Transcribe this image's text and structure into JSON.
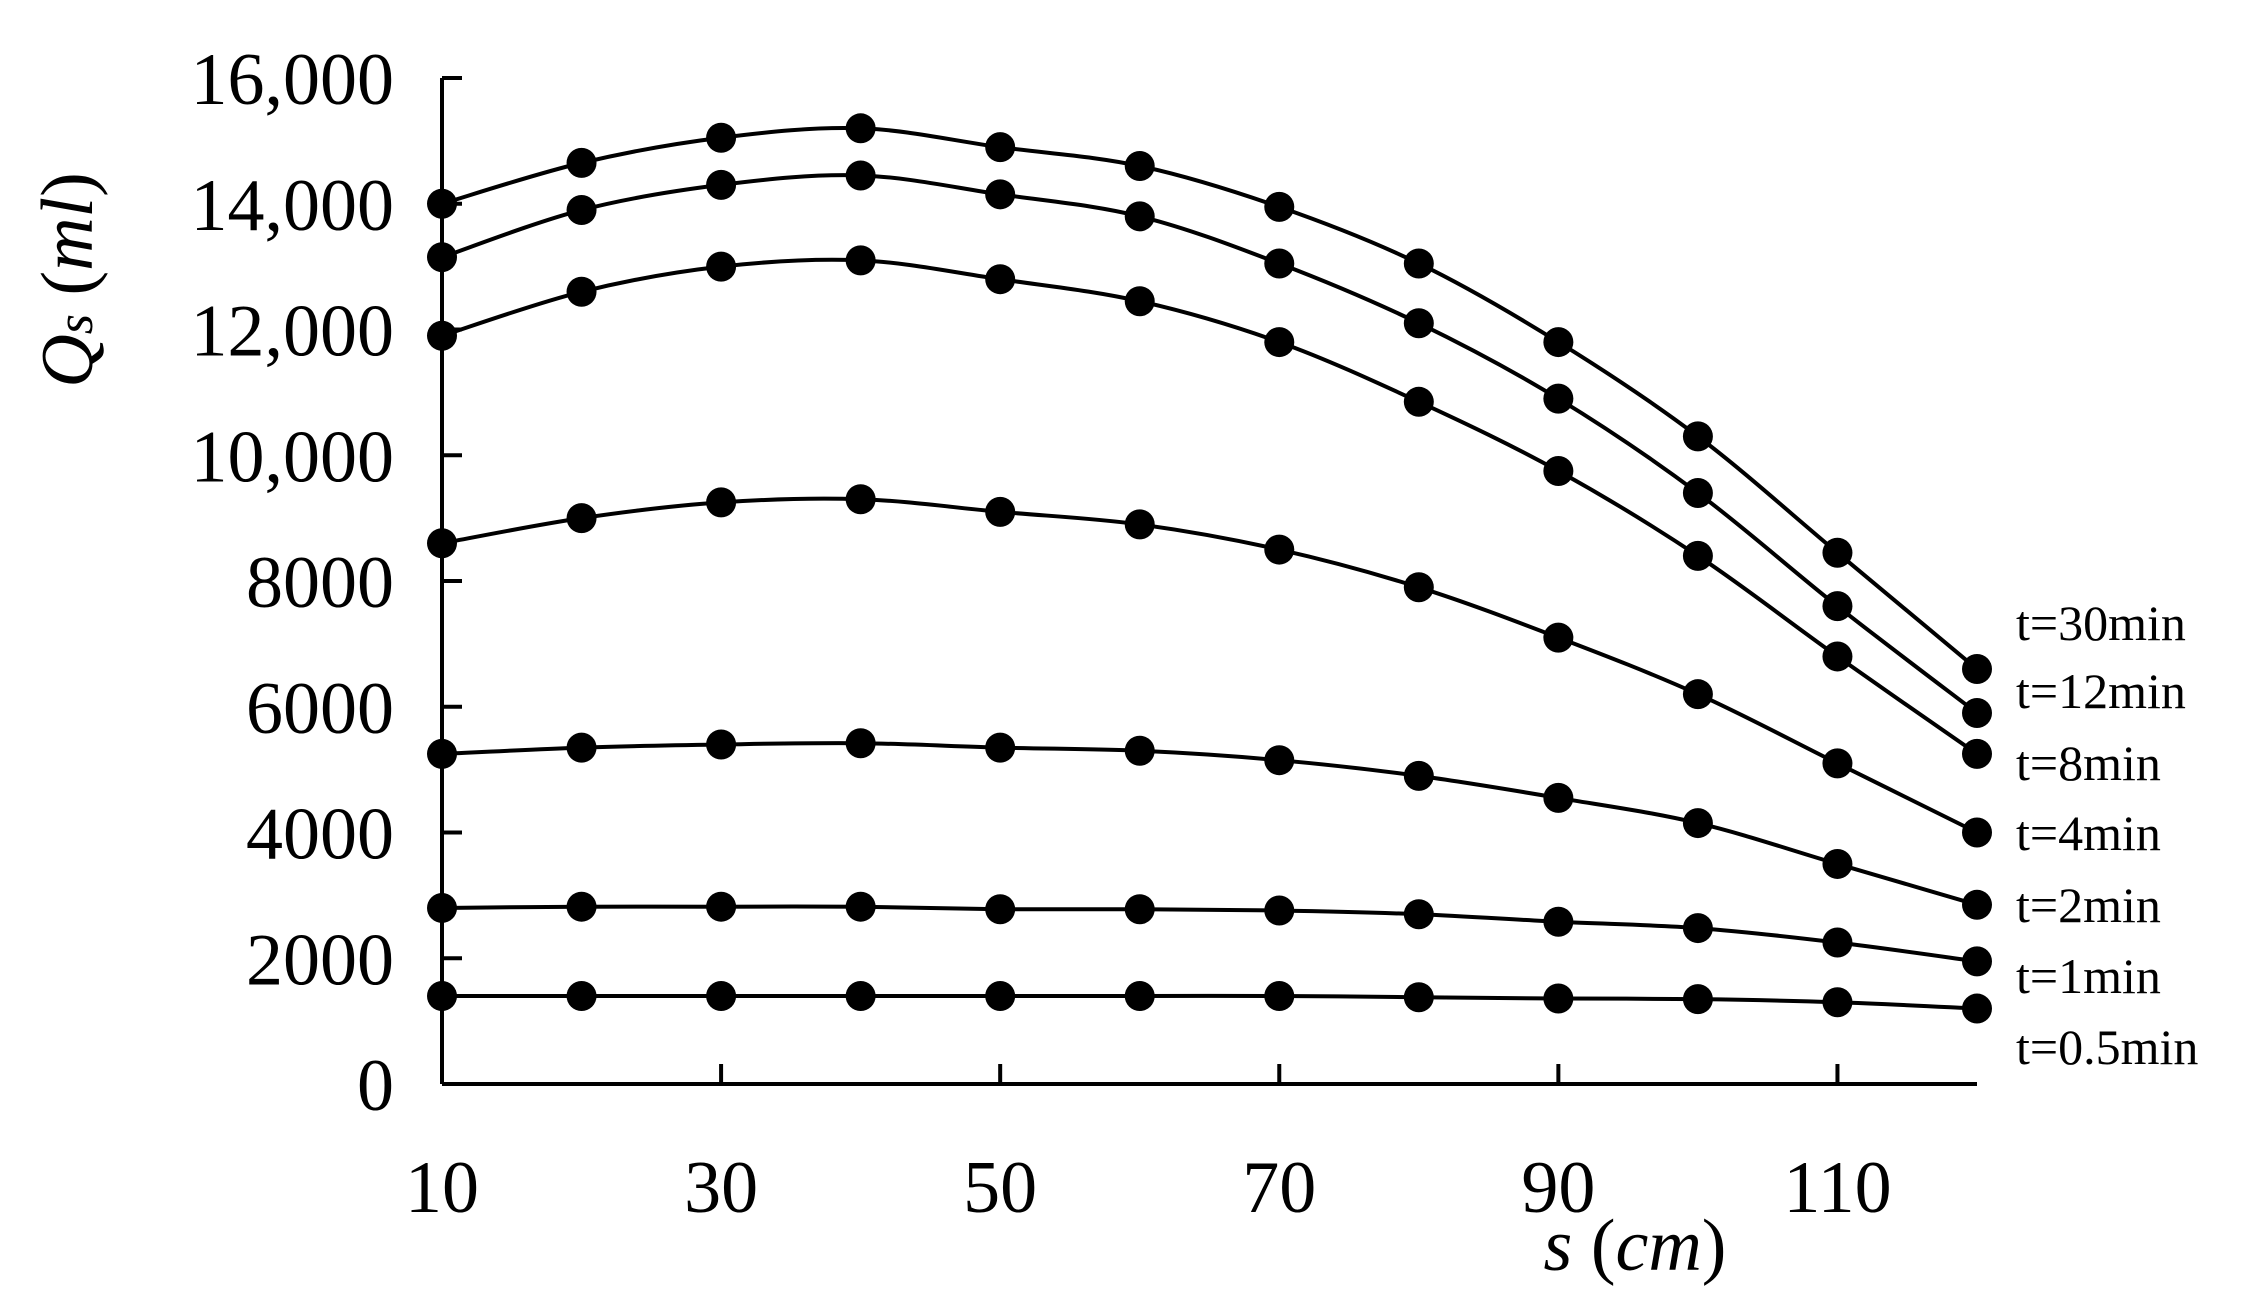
{
  "chart_data": {
    "type": "line",
    "title": "",
    "xlabel": {
      "var": "s",
      "unit": "cm"
    },
    "ylabel": {
      "var": "Q",
      "sub": "s",
      "unit": "ml"
    },
    "xlim": [
      10,
      120
    ],
    "ylim": [
      0,
      16000
    ],
    "x_ticks": [
      10,
      30,
      50,
      70,
      90,
      110
    ],
    "x_tick_labels": [
      "10",
      "30",
      "50",
      "70",
      "90",
      "110"
    ],
    "y_ticks": [
      0,
      2000,
      4000,
      6000,
      8000,
      10000,
      12000,
      14000,
      16000
    ],
    "y_tick_labels": [
      "0",
      "2000",
      "4000",
      "6000",
      "8000",
      "10,000",
      "12,000",
      "14,000",
      "16,000"
    ],
    "grid": false,
    "legend": "none",
    "x": [
      10,
      20,
      30,
      40,
      50,
      60,
      70,
      80,
      90,
      100,
      110,
      120
    ],
    "series": [
      {
        "name": "t=30min",
        "values": [
          14000,
          14650,
          15050,
          15200,
          14900,
          14600,
          13950,
          13050,
          11800,
          10300,
          8450,
          6600
        ]
      },
      {
        "name": "t=12min",
        "values": [
          13150,
          13900,
          14300,
          14450,
          14150,
          13800,
          13050,
          12100,
          10900,
          9400,
          7600,
          5900
        ]
      },
      {
        "name": "t=8min",
        "values": [
          11900,
          12600,
          13000,
          13100,
          12800,
          12450,
          11800,
          10850,
          9750,
          8400,
          6800,
          5250
        ]
      },
      {
        "name": "t=4min",
        "values": [
          8600,
          9000,
          9250,
          9300,
          9100,
          8900,
          8500,
          7900,
          7100,
          6200,
          5100,
          4000
        ]
      },
      {
        "name": "t=2min",
        "values": [
          5250,
          5350,
          5400,
          5420,
          5350,
          5300,
          5150,
          4900,
          4550,
          4150,
          3500,
          2850
        ]
      },
      {
        "name": "t=1min",
        "values": [
          2800,
          2820,
          2820,
          2820,
          2780,
          2780,
          2760,
          2700,
          2580,
          2480,
          2250,
          1950
        ]
      },
      {
        "name": "t=0.5min",
        "values": [
          1400,
          1400,
          1400,
          1400,
          1400,
          1400,
          1400,
          1380,
          1360,
          1350,
          1300,
          1200
        ]
      }
    ],
    "series_label_positions_px": null
  }
}
